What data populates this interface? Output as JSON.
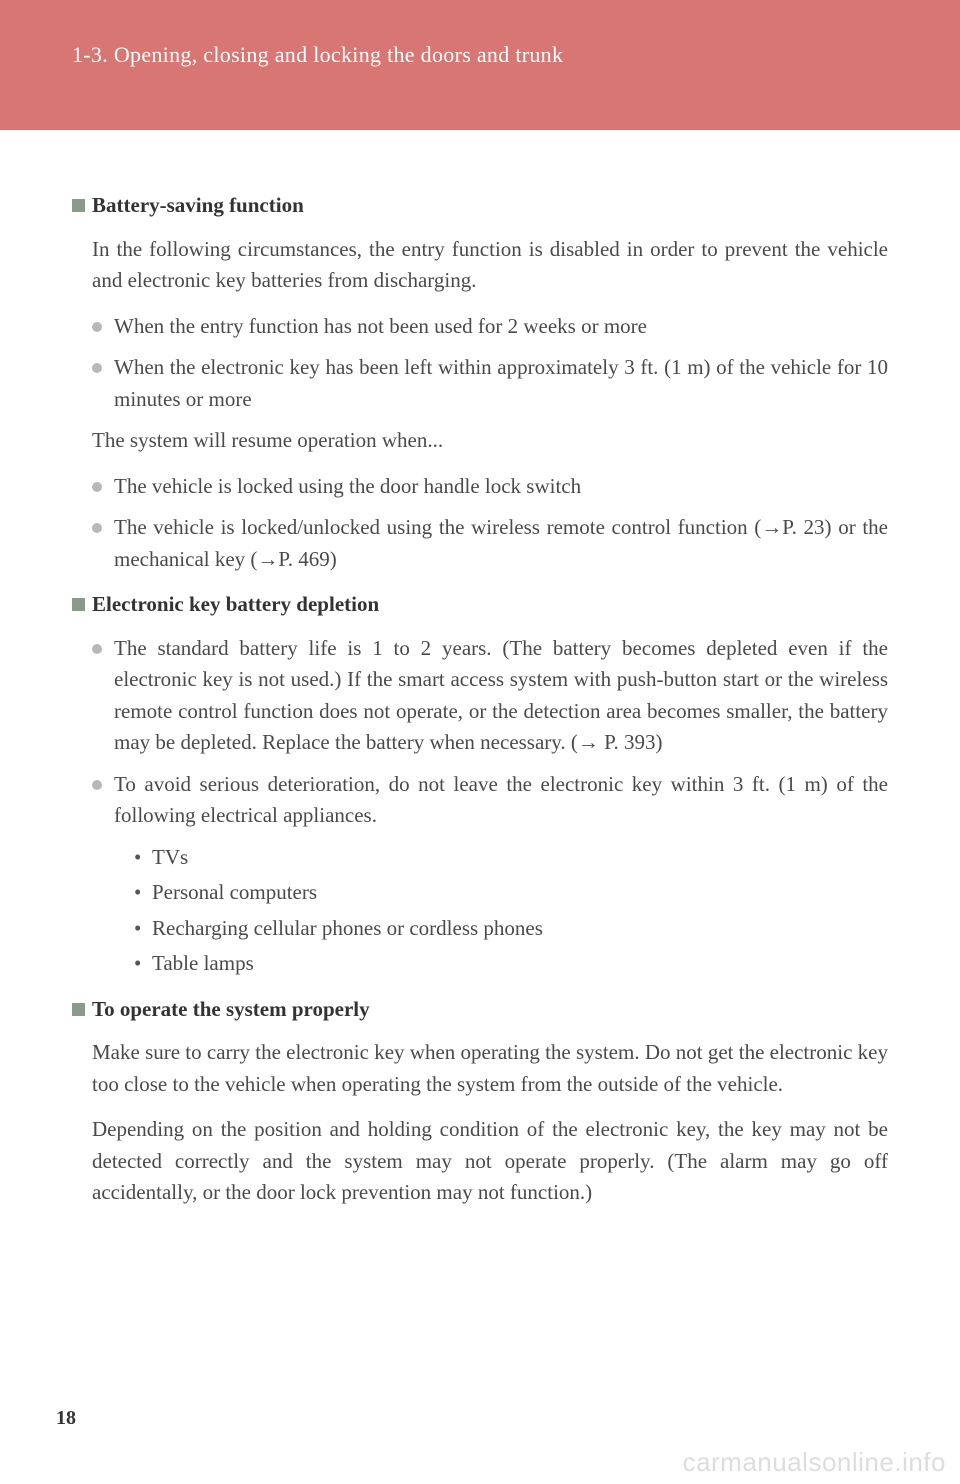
{
  "header": {
    "section_label": "1-3. Opening, closing and locking the doors and trunk"
  },
  "sections": [
    {
      "heading": "Battery-saving function",
      "blocks": [
        {
          "type": "para",
          "text": "In the following circumstances, the entry function is disabled in order to prevent the vehicle and electronic key batteries from discharging."
        },
        {
          "type": "bullet",
          "text": "When the entry function has not been used for 2 weeks or more"
        },
        {
          "type": "bullet",
          "text": "When the electronic key has been left within approximately 3 ft. (1 m) of the vehicle for 10 minutes or more"
        },
        {
          "type": "para",
          "text": "The system will resume operation when..."
        },
        {
          "type": "bullet",
          "text": "The vehicle is locked using the door handle lock switch"
        },
        {
          "type": "bullet",
          "text": "The vehicle is locked/unlocked using the wireless remote control function (→P. 23) or the mechanical key (→P. 469)"
        }
      ]
    },
    {
      "heading": "Electronic key battery depletion",
      "blocks": [
        {
          "type": "bullet",
          "text": "The standard battery life is 1 to 2 years. (The battery becomes depleted even if the electronic key is not used.) If the smart access system with push-button start or the wireless remote control function does not operate, or the detection area becomes smaller, the battery may be depleted. Replace the battery when necessary. (→ P. 393)"
        },
        {
          "type": "bullet",
          "text": "To avoid serious deterioration, do not leave the electronic key within 3 ft. (1 m) of the following electrical appliances."
        },
        {
          "type": "dotlist",
          "items": [
            "TVs",
            "Personal computers",
            "Recharging cellular phones or cordless phones",
            "Table lamps"
          ]
        }
      ]
    },
    {
      "heading": "To operate the system properly",
      "blocks": [
        {
          "type": "para",
          "text": "Make sure to carry the electronic key when operating the system. Do not get the electronic key too close to the vehicle when operating the system from the outside of the vehicle."
        },
        {
          "type": "para",
          "text": "Depending on the position and holding condition of the electronic key, the key may not be detected correctly and the system may not operate properly. (The alarm may go off accidentally, or the door lock prevention may not function.)"
        }
      ]
    }
  ],
  "page_number": "18",
  "watermark": "carmanualsonline.info"
}
